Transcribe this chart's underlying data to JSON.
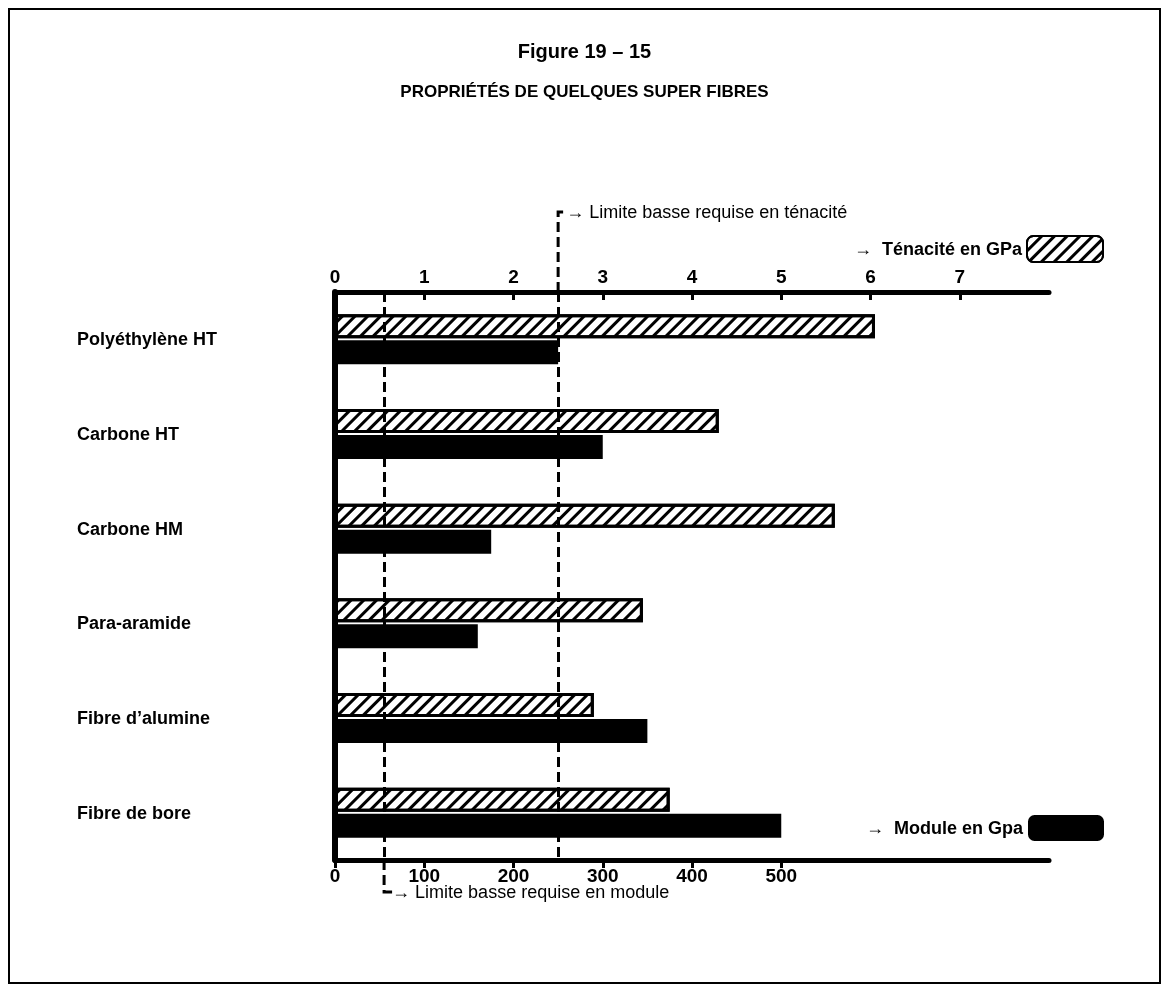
{
  "chart_data": {
    "type": "bar",
    "orientation": "horizontal",
    "title": "Figure 19 – 15",
    "subtitle": "PROPRIÉTÉS DE QUELQUES SUPER FIBRES",
    "categories": [
      "Polyéthylène HT",
      "Carbone HT",
      "Carbone HM",
      "Para-aramide",
      "Fibre d’alumine",
      "Fibre de bore"
    ],
    "series": [
      {
        "name": "→  Ténacité en GPa",
        "color": "#000000",
        "axis": "x2",
        "values": [
          6.05,
          4.3,
          5.6,
          3.45,
          2.9,
          3.75
        ]
      },
      {
        "name": "→  Module en Gpa",
        "color": "#000000",
        "values": [
          250,
          300,
          175,
          160,
          350,
          500
        ]
      }
    ],
    "xlim": [
      0,
      800
    ],
    "xticks": [
      0,
      100,
      200,
      300,
      400,
      500
    ],
    "x2lim": [
      0,
      8
    ],
    "x2ticks": [
      0,
      1,
      2,
      3,
      4,
      5,
      6,
      7
    ],
    "ref_lines": [
      {
        "axis": "x2",
        "value": 2.5,
        "label": "→ Limite basse requise en ténacité",
        "line_style": "dashed"
      },
      {
        "axis": "x",
        "value": 55,
        "label": "→ Limite basse requise en module",
        "line_style": "dashed"
      }
    ],
    "legend": "right",
    "grid": false
  }
}
